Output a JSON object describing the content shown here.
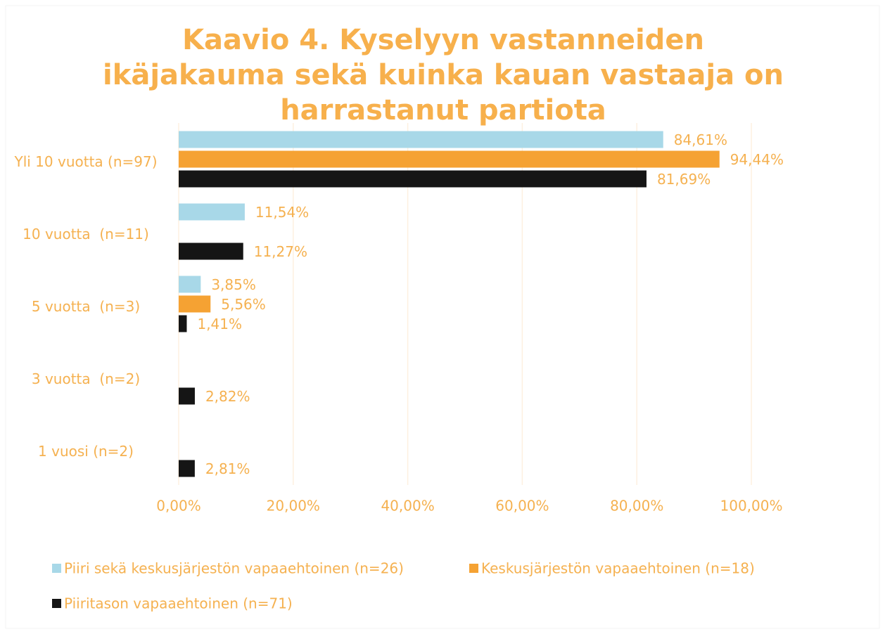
{
  "chart_data": {
    "type": "bar",
    "orientation": "horizontal",
    "title": "Kaavio 4. Kyselyyn vastanneiden ikäjakauma sekä kuinka kauan vastaaja on harrastanut partiota",
    "categories": [
      "Yli 10 vuotta (n=97)",
      "10 vuotta  (n=11)",
      "5 vuotta  (n=3)",
      "3 vuotta  (n=2)",
      "1 vuosi (n=2)"
    ],
    "series": [
      {
        "name": "Piiri sekä keskusjärjestön vapaaehtoinen (n=26)",
        "color": "#a8d8e8",
        "values": [
          84.61,
          11.54,
          3.85,
          null,
          null
        ],
        "value_labels": [
          "84,61%",
          "11,54%",
          "3,85%",
          null,
          null
        ]
      },
      {
        "name": "Keskusjärjestön vapaaehtoinen (n=18)",
        "color": "#f5a233",
        "values": [
          94.44,
          null,
          5.56,
          null,
          null
        ],
        "value_labels": [
          "94,44%",
          null,
          "5,56%",
          null,
          null
        ]
      },
      {
        "name": "Piiritason vapaaehtoinen (n=71)",
        "color": "#151515",
        "values": [
          81.69,
          11.27,
          1.41,
          2.82,
          2.81
        ],
        "value_labels": [
          "81,69%",
          "11,27%",
          "1,41%",
          "2,82%",
          "2,81%"
        ]
      }
    ],
    "xlim": [
      0,
      100
    ],
    "xticks": [
      {
        "value": 0,
        "label": "0,00%"
      },
      {
        "value": 20,
        "label": "20,00%"
      },
      {
        "value": 40,
        "label": "40,00%"
      },
      {
        "value": 60,
        "label": "60,00%"
      },
      {
        "value": 80,
        "label": "80,00%"
      },
      {
        "value": 100,
        "label": "100,00%"
      }
    ],
    "grid": true,
    "legend": "bottom"
  }
}
